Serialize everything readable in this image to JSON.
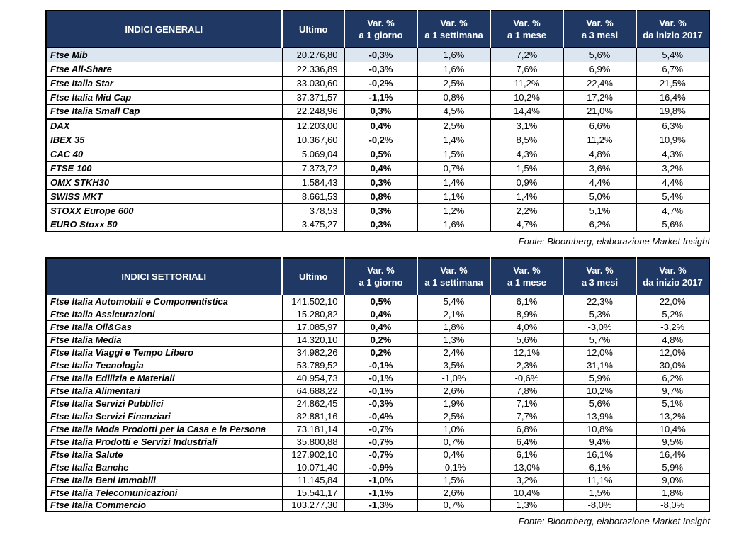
{
  "tables": [
    {
      "title": "INDICI GENERALI",
      "columns": [
        {
          "line1": "Ultimo",
          "line2": ""
        },
        {
          "line1": "Var. %",
          "line2": "a 1 giorno"
        },
        {
          "line1": "Var. %",
          "line2": "a 1 settimana"
        },
        {
          "line1": "Var. %",
          "line2": "a 1 mese"
        },
        {
          "line1": "Var. %",
          "line2": "a 3 mesi"
        },
        {
          "line1": "Var. %",
          "line2": "da inizio 2017"
        }
      ],
      "groups": [
        {
          "rows": [
            {
              "label": "Ftse Mib",
              "highlight": true,
              "values": [
                "20.276,80",
                "-0,3%",
                "1,6%",
                "7,2%",
                "5,6%",
                "5,4%"
              ]
            },
            {
              "label": "Ftse All-Share",
              "values": [
                "22.336,89",
                "-0,3%",
                "1,6%",
                "7,6%",
                "6,9%",
                "6,7%"
              ]
            },
            {
              "label": "Ftse Italia Star",
              "values": [
                "33.030,60",
                "-0,2%",
                "2,5%",
                "11,2%",
                "22,4%",
                "21,5%"
              ]
            },
            {
              "label": "Ftse Italia Mid Cap",
              "values": [
                "37.371,57",
                "-1,1%",
                "0,8%",
                "10,2%",
                "17,2%",
                "16,4%"
              ]
            },
            {
              "label": "Ftse Italia Small Cap",
              "values": [
                "22.248,96",
                "0,3%",
                "4,5%",
                "14,4%",
                "21,0%",
                "19,8%"
              ]
            }
          ]
        },
        {
          "rows": [
            {
              "label": "DAX",
              "values": [
                "12.203,00",
                "0,4%",
                "2,5%",
                "3,1%",
                "6,6%",
                "6,3%"
              ]
            },
            {
              "label": "IBEX 35",
              "values": [
                "10.367,60",
                "-0,2%",
                "1,4%",
                "8,5%",
                "11,2%",
                "10,9%"
              ]
            },
            {
              "label": "CAC 40",
              "values": [
                "5.069,04",
                "0,5%",
                "1,5%",
                "4,3%",
                "4,8%",
                "4,3%"
              ]
            },
            {
              "label": "FTSE 100",
              "values": [
                "7.373,72",
                "0,4%",
                "0,7%",
                "1,5%",
                "3,6%",
                "3,2%"
              ]
            },
            {
              "label": "OMX STKH30",
              "values": [
                "1.584,43",
                "0,3%",
                "1,4%",
                "0,9%",
                "4,4%",
                "4,4%"
              ]
            },
            {
              "label": "SWISS MKT",
              "values": [
                "8.661,53",
                "0,8%",
                "1,1%",
                "1,4%",
                "5,0%",
                "5,4%"
              ]
            },
            {
              "label": "STOXX Europe 600",
              "values": [
                "378,53",
                "0,3%",
                "1,2%",
                "2,2%",
                "5,1%",
                "4,7%"
              ]
            },
            {
              "label": "EURO Stoxx 50",
              "values": [
                "3.475,27",
                "0,3%",
                "1,6%",
                "4,7%",
                "6,2%",
                "5,6%"
              ]
            }
          ]
        }
      ],
      "source": "Fonte: Bloomberg, elaborazione Market Insight"
    },
    {
      "title": "INDICI SETTORIALI",
      "columns": [
        {
          "line1": "Ultimo",
          "line2": ""
        },
        {
          "line1": "Var. %",
          "line2": "a 1 giorno"
        },
        {
          "line1": "Var. %",
          "line2": "a 1 settimana"
        },
        {
          "line1": "Var. %",
          "line2": "a 1 mese"
        },
        {
          "line1": "Var. %",
          "line2": "a 3 mesi"
        },
        {
          "line1": "Var. %",
          "line2": "da inizio 2017"
        }
      ],
      "groups": [
        {
          "rows": [
            {
              "label": "Ftse Italia Automobili e Componentistica",
              "values": [
                "141.502,10",
                "0,5%",
                "5,4%",
                "6,1%",
                "22,3%",
                "22,0%"
              ]
            },
            {
              "label": "Ftse Italia Assicurazioni",
              "values": [
                "15.280,82",
                "0,4%",
                "2,1%",
                "8,9%",
                "5,3%",
                "5,2%"
              ]
            },
            {
              "label": "Ftse Italia Oil&Gas",
              "values": [
                "17.085,97",
                "0,4%",
                "1,8%",
                "4,0%",
                "-3,0%",
                "-3,2%"
              ]
            },
            {
              "label": "Ftse Italia Media",
              "values": [
                "14.320,10",
                "0,2%",
                "1,3%",
                "5,6%",
                "5,7%",
                "4,8%"
              ]
            },
            {
              "label": "Ftse Italia Viaggi e Tempo Libero",
              "values": [
                "34.982,26",
                "0,2%",
                "2,4%",
                "12,1%",
                "12,0%",
                "12,0%"
              ]
            },
            {
              "label": "Ftse Italia Tecnologia",
              "values": [
                "53.789,52",
                "-0,1%",
                "3,5%",
                "2,3%",
                "31,1%",
                "30,0%"
              ]
            },
            {
              "label": "Ftse Italia Edilizia e Materiali",
              "values": [
                "40.954,73",
                "-0,1%",
                "-1,0%",
                "-0,6%",
                "5,9%",
                "6,2%"
              ]
            },
            {
              "label": "Ftse Italia Alimentari",
              "values": [
                "64.688,22",
                "-0,1%",
                "2,6%",
                "7,8%",
                "10,2%",
                "9,7%"
              ]
            },
            {
              "label": "Ftse Italia Servizi Pubblici",
              "values": [
                "24.862,45",
                "-0,3%",
                "1,9%",
                "7,1%",
                "5,6%",
                "5,1%"
              ]
            },
            {
              "label": "Ftse Italia Servizi Finanziari",
              "values": [
                "82.881,16",
                "-0,4%",
                "2,5%",
                "7,7%",
                "13,9%",
                "13,2%"
              ]
            },
            {
              "label": "Ftse Italia Moda Prodotti per la Casa e la Persona",
              "values": [
                "73.181,14",
                "-0,7%",
                "1,0%",
                "6,8%",
                "10,8%",
                "10,4%"
              ]
            },
            {
              "label": "Ftse Italia Prodotti e Servizi Industriali",
              "values": [
                "35.800,88",
                "-0,7%",
                "0,7%",
                "6,4%",
                "9,4%",
                "9,5%"
              ]
            },
            {
              "label": "Ftse Italia Salute",
              "values": [
                "127.902,10",
                "-0,7%",
                "0,4%",
                "6,1%",
                "16,1%",
                "16,4%"
              ]
            },
            {
              "label": "Ftse Italia Banche",
              "values": [
                "10.071,40",
                "-0,9%",
                "-0,1%",
                "13,0%",
                "6,1%",
                "5,9%"
              ]
            },
            {
              "label": "Ftse Italia Beni Immobili",
              "values": [
                "11.145,84",
                "-1,0%",
                "1,5%",
                "3,2%",
                "11,1%",
                "9,0%"
              ]
            },
            {
              "label": "Ftse Italia Telecomunicazioni",
              "values": [
                "15.541,17",
                "-1,1%",
                "2,6%",
                "10,4%",
                "1,5%",
                "1,8%"
              ]
            },
            {
              "label": "Ftse Italia Commercio",
              "values": [
                "103.277,30",
                "-1,3%",
                "0,7%",
                "1,3%",
                "-8,0%",
                "-8,0%"
              ]
            }
          ]
        }
      ],
      "source": "Fonte: Bloomberg, elaborazione Market Insight"
    }
  ],
  "colors": {
    "header_bg": "#1F3864",
    "highlight_row_bg": "#DCE6F1",
    "border": "#000000"
  }
}
